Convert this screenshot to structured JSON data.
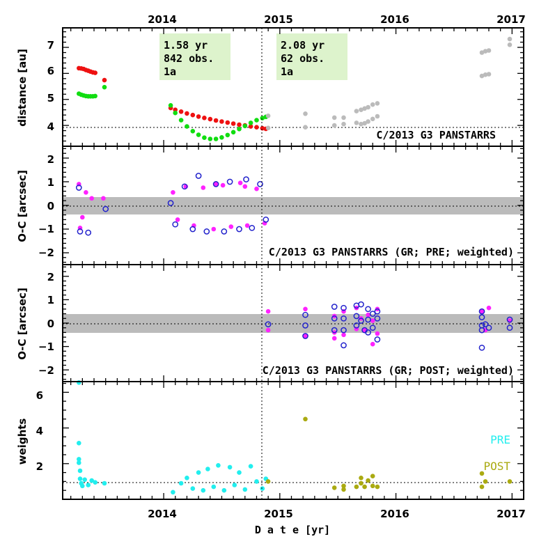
{
  "figure": {
    "object": "C/2013 G3 PANSTARRS",
    "xlabel": "D a t e [yr]",
    "x_tick_labels": [
      "2014",
      "2015",
      "2016",
      "2017"
    ]
  },
  "colors": {
    "helio": "#ee1111",
    "geo": "#11dd11",
    "post_distance": "#bbbbbb",
    "resid_ra": "#ff22ff",
    "resid_dec": "#2222cc",
    "weights_pre": "#22eeee",
    "weights_post": "#aaaa11",
    "band": "#bbbbbb",
    "infobox": "#ddf3cc"
  },
  "chart_data": [
    {
      "type": "scatter",
      "id": "distance",
      "ylabel": "distance [au]",
      "title": "C/2013 G3 PANSTARRS",
      "xlim": [
        2013.13,
        2017.1
      ],
      "ylim": [
        3.2,
        7.75
      ],
      "y_ticks": [
        4,
        5,
        6,
        7
      ],
      "perihelion_date": 2014.89,
      "perihelion_distance": 3.86,
      "info_boxes": [
        {
          "lines": [
            "1.58 yr",
            "842 obs.",
            "1a"
          ],
          "range": "pre"
        },
        {
          "lines": [
            "2.08 yr",
            "62 obs.",
            "1a"
          ],
          "range": "post"
        }
      ],
      "series": [
        {
          "name": "heliocentric (PRE)",
          "color_key": "helio",
          "points": [
            [
              2013.27,
              6.2
            ],
            [
              2013.29,
              6.19
            ],
            [
              2013.31,
              6.17
            ],
            [
              2013.33,
              6.13
            ],
            [
              2013.35,
              6.1
            ],
            [
              2013.37,
              6.07
            ],
            [
              2013.39,
              6.04
            ],
            [
              2013.41,
              6.02
            ],
            [
              2013.49,
              5.74
            ],
            [
              2014.06,
              4.67
            ],
            [
              2014.1,
              4.6
            ],
            [
              2014.15,
              4.53
            ],
            [
              2014.2,
              4.46
            ],
            [
              2014.25,
              4.4
            ],
            [
              2014.3,
              4.34
            ],
            [
              2014.35,
              4.29
            ],
            [
              2014.4,
              4.24
            ],
            [
              2014.45,
              4.19
            ],
            [
              2014.5,
              4.15
            ],
            [
              2014.55,
              4.11
            ],
            [
              2014.6,
              4.07
            ],
            [
              2014.65,
              4.03
            ],
            [
              2014.7,
              4.0
            ],
            [
              2014.75,
              3.96
            ],
            [
              2014.8,
              3.93
            ],
            [
              2014.85,
              3.89
            ],
            [
              2014.88,
              3.87
            ]
          ]
        },
        {
          "name": "geocentric (PRE)",
          "color_key": "geo",
          "points": [
            [
              2013.27,
              5.22
            ],
            [
              2013.29,
              5.18
            ],
            [
              2013.31,
              5.15
            ],
            [
              2013.33,
              5.13
            ],
            [
              2013.35,
              5.12
            ],
            [
              2013.37,
              5.12
            ],
            [
              2013.39,
              5.12
            ],
            [
              2013.41,
              5.13
            ],
            [
              2013.49,
              5.47
            ],
            [
              2014.06,
              4.77
            ],
            [
              2014.1,
              4.48
            ],
            [
              2014.15,
              4.2
            ],
            [
              2014.2,
              3.96
            ],
            [
              2014.25,
              3.78
            ],
            [
              2014.3,
              3.64
            ],
            [
              2014.35,
              3.53
            ],
            [
              2014.4,
              3.48
            ],
            [
              2014.45,
              3.48
            ],
            [
              2014.5,
              3.54
            ],
            [
              2014.55,
              3.63
            ],
            [
              2014.6,
              3.74
            ],
            [
              2014.65,
              3.86
            ],
            [
              2014.7,
              3.98
            ],
            [
              2014.75,
              4.1
            ],
            [
              2014.8,
              4.2
            ],
            [
              2014.85,
              4.28
            ],
            [
              2014.88,
              4.33
            ]
          ]
        },
        {
          "name": "distances (POST)",
          "color_key": "post_distance",
          "points": [
            [
              2014.9,
              3.9
            ],
            [
              2014.9,
              4.37
            ],
            [
              2015.22,
              3.93
            ],
            [
              2015.22,
              4.45
            ],
            [
              2015.47,
              4.0
            ],
            [
              2015.47,
              4.3
            ],
            [
              2015.55,
              4.05
            ],
            [
              2015.55,
              4.3
            ],
            [
              2015.66,
              4.1
            ],
            [
              2015.66,
              4.55
            ],
            [
              2015.7,
              4.05
            ],
            [
              2015.7,
              4.6
            ],
            [
              2015.73,
              4.08
            ],
            [
              2015.73,
              4.65
            ],
            [
              2015.76,
              4.15
            ],
            [
              2015.76,
              4.7
            ],
            [
              2015.8,
              4.25
            ],
            [
              2015.8,
              4.8
            ],
            [
              2015.84,
              4.35
            ],
            [
              2015.84,
              4.85
            ],
            [
              2016.74,
              5.9
            ],
            [
              2016.74,
              6.8
            ],
            [
              2016.77,
              5.95
            ],
            [
              2016.77,
              6.85
            ],
            [
              2016.8,
              5.97
            ],
            [
              2016.8,
              6.88
            ],
            [
              2016.98,
              7.1
            ],
            [
              2016.98,
              7.32
            ]
          ]
        }
      ]
    },
    {
      "type": "scatter",
      "id": "oc_pre",
      "ylabel": "O-C [arcsec]",
      "title": "C/2013 G3 PANSTARRS (GR; PRE; weighted)",
      "xlim": [
        2013.13,
        2017.1
      ],
      "ylim": [
        -2.5,
        2.5
      ],
      "y_ticks": [
        -2,
        -1,
        0,
        1,
        2
      ],
      "band": [
        -0.4,
        0.4
      ],
      "series": [
        {
          "name": "RA residuals",
          "color_key": "resid_ra",
          "points": [
            [
              2013.27,
              0.9
            ],
            [
              2013.28,
              -0.95
            ],
            [
              2013.3,
              -0.5
            ],
            [
              2013.33,
              0.55
            ],
            [
              2013.38,
              0.3
            ],
            [
              2013.48,
              0.3
            ],
            [
              2014.08,
              0.55
            ],
            [
              2014.12,
              -0.6
            ],
            [
              2014.19,
              0.8
            ],
            [
              2014.26,
              -0.85
            ],
            [
              2014.34,
              0.75
            ],
            [
              2014.43,
              -1.0
            ],
            [
              2014.51,
              0.85
            ],
            [
              2014.58,
              -0.9
            ],
            [
              2014.66,
              0.95
            ],
            [
              2014.72,
              -0.85
            ],
            [
              2014.8,
              0.7
            ],
            [
              2014.87,
              -0.75
            ],
            [
              2014.7,
              0.8
            ],
            [
              2014.45,
              0.9
            ]
          ]
        },
        {
          "name": "Dec residuals",
          "color_key": "resid_dec",
          "points": [
            [
              2013.27,
              0.75
            ],
            [
              2013.28,
              -1.1
            ],
            [
              2013.35,
              -1.15
            ],
            [
              2013.5,
              -0.15
            ],
            [
              2014.06,
              0.1
            ],
            [
              2014.1,
              -0.8
            ],
            [
              2014.18,
              0.8
            ],
            [
              2014.25,
              -1.0
            ],
            [
              2014.3,
              1.25
            ],
            [
              2014.37,
              -1.1
            ],
            [
              2014.45,
              0.9
            ],
            [
              2014.52,
              -1.1
            ],
            [
              2014.57,
              1.0
            ],
            [
              2014.65,
              -1.0
            ],
            [
              2014.71,
              1.1
            ],
            [
              2014.76,
              -0.95
            ],
            [
              2014.83,
              0.9
            ],
            [
              2014.88,
              -0.6
            ]
          ]
        }
      ]
    },
    {
      "type": "scatter",
      "id": "oc_post",
      "ylabel": "O-C [arcsec]",
      "title": "C/2013 G3 PANSTARRS (GR; POST; weighted)",
      "xlim": [
        2013.13,
        2017.1
      ],
      "ylim": [
        -2.5,
        2.5
      ],
      "y_ticks": [
        -2,
        -1,
        0,
        1,
        2
      ],
      "band": [
        -0.4,
        0.4
      ],
      "series": [
        {
          "name": "RA residuals",
          "color_key": "resid_ra",
          "points": [
            [
              2014.9,
              0.5
            ],
            [
              2014.9,
              -0.3
            ],
            [
              2015.22,
              0.6
            ],
            [
              2015.22,
              -0.55
            ],
            [
              2015.47,
              0.3
            ],
            [
              2015.47,
              -0.4
            ],
            [
              2015.47,
              -0.65
            ],
            [
              2015.55,
              -0.5
            ],
            [
              2015.55,
              0.5
            ],
            [
              2015.66,
              -0.25
            ],
            [
              2015.66,
              0.65
            ],
            [
              2015.7,
              0.2
            ],
            [
              2015.73,
              -0.3
            ],
            [
              2015.76,
              0.35
            ],
            [
              2015.8,
              -0.9
            ],
            [
              2015.8,
              0.1
            ],
            [
              2015.84,
              0.6
            ],
            [
              2015.84,
              -0.45
            ],
            [
              2016.74,
              0.5
            ],
            [
              2016.77,
              -0.3
            ],
            [
              2016.8,
              0.65
            ],
            [
              2016.98,
              0.1
            ]
          ]
        },
        {
          "name": "Dec residuals",
          "color_key": "resid_dec",
          "points": [
            [
              2014.9,
              -0.05
            ],
            [
              2015.22,
              0.35
            ],
            [
              2015.22,
              -0.1
            ],
            [
              2015.22,
              -0.55
            ],
            [
              2015.47,
              0.7
            ],
            [
              2015.47,
              0.2
            ],
            [
              2015.47,
              -0.3
            ],
            [
              2015.55,
              0.65
            ],
            [
              2015.55,
              0.2
            ],
            [
              2015.55,
              -0.3
            ],
            [
              2015.55,
              -0.95
            ],
            [
              2015.66,
              0.75
            ],
            [
              2015.66,
              0.3
            ],
            [
              2015.66,
              -0.1
            ],
            [
              2015.7,
              0.8
            ],
            [
              2015.7,
              0.1
            ],
            [
              2015.73,
              -0.3
            ],
            [
              2015.76,
              0.6
            ],
            [
              2015.76,
              0.15
            ],
            [
              2015.76,
              -0.4
            ],
            [
              2015.8,
              0.4
            ],
            [
              2015.8,
              -0.2
            ],
            [
              2015.84,
              0.5
            ],
            [
              2015.84,
              0.2
            ],
            [
              2015.84,
              -0.7
            ],
            [
              2016.74,
              0.5
            ],
            [
              2016.74,
              0.25
            ],
            [
              2016.74,
              -0.1
            ],
            [
              2016.74,
              -0.3
            ],
            [
              2016.74,
              -1.05
            ],
            [
              2016.77,
              -0.05
            ],
            [
              2016.8,
              -0.2
            ],
            [
              2016.98,
              0.15
            ],
            [
              2016.98,
              -0.2
            ]
          ]
        }
      ]
    },
    {
      "type": "scatter",
      "id": "weights",
      "ylabel": "weights",
      "xlim": [
        2013.13,
        2017.1
      ],
      "ylim": [
        0,
        6.6
      ],
      "y_ticks": [
        2,
        4,
        6
      ],
      "reference_line": 1.0,
      "legend": [
        {
          "label": "PRE",
          "color_key": "weights_pre"
        },
        {
          "label": "POST",
          "color_key": "weights_post"
        }
      ],
      "series": [
        {
          "name": "PRE",
          "color_key": "weights_pre",
          "points": [
            [
              2013.27,
              6.55
            ],
            [
              2013.27,
              3.15
            ],
            [
              2013.27,
              2.25
            ],
            [
              2013.27,
              2.05
            ],
            [
              2013.28,
              1.6
            ],
            [
              2013.28,
              1.15
            ],
            [
              2013.29,
              0.9
            ],
            [
              2013.3,
              0.75
            ],
            [
              2013.32,
              1.1
            ],
            [
              2013.35,
              0.8
            ],
            [
              2013.38,
              1.05
            ],
            [
              2013.41,
              0.95
            ],
            [
              2013.49,
              0.9
            ],
            [
              2014.08,
              0.4
            ],
            [
              2014.15,
              0.9
            ],
            [
              2014.2,
              1.2
            ],
            [
              2014.25,
              0.6
            ],
            [
              2014.3,
              1.5
            ],
            [
              2014.34,
              0.5
            ],
            [
              2014.38,
              1.7
            ],
            [
              2014.43,
              0.7
            ],
            [
              2014.47,
              1.9
            ],
            [
              2014.52,
              0.5
            ],
            [
              2014.57,
              1.8
            ],
            [
              2014.61,
              0.8
            ],
            [
              2014.65,
              1.5
            ],
            [
              2014.7,
              0.55
            ],
            [
              2014.75,
              1.85
            ],
            [
              2014.8,
              1.0
            ],
            [
              2014.85,
              0.6
            ],
            [
              2014.88,
              1.15
            ]
          ]
        },
        {
          "name": "POST",
          "color_key": "weights_post",
          "points": [
            [
              2014.9,
              1.0
            ],
            [
              2015.22,
              4.5
            ],
            [
              2015.47,
              0.65
            ],
            [
              2015.55,
              0.55
            ],
            [
              2015.55,
              0.75
            ],
            [
              2015.66,
              0.7
            ],
            [
              2015.7,
              0.9
            ],
            [
              2015.7,
              1.2
            ],
            [
              2015.73,
              0.7
            ],
            [
              2015.76,
              1.05
            ],
            [
              2015.8,
              0.75
            ],
            [
              2015.8,
              1.3
            ],
            [
              2015.84,
              0.7
            ],
            [
              2016.74,
              1.45
            ],
            [
              2016.74,
              0.7
            ],
            [
              2016.77,
              1.0
            ],
            [
              2016.98,
              1.0
            ]
          ]
        }
      ]
    }
  ]
}
